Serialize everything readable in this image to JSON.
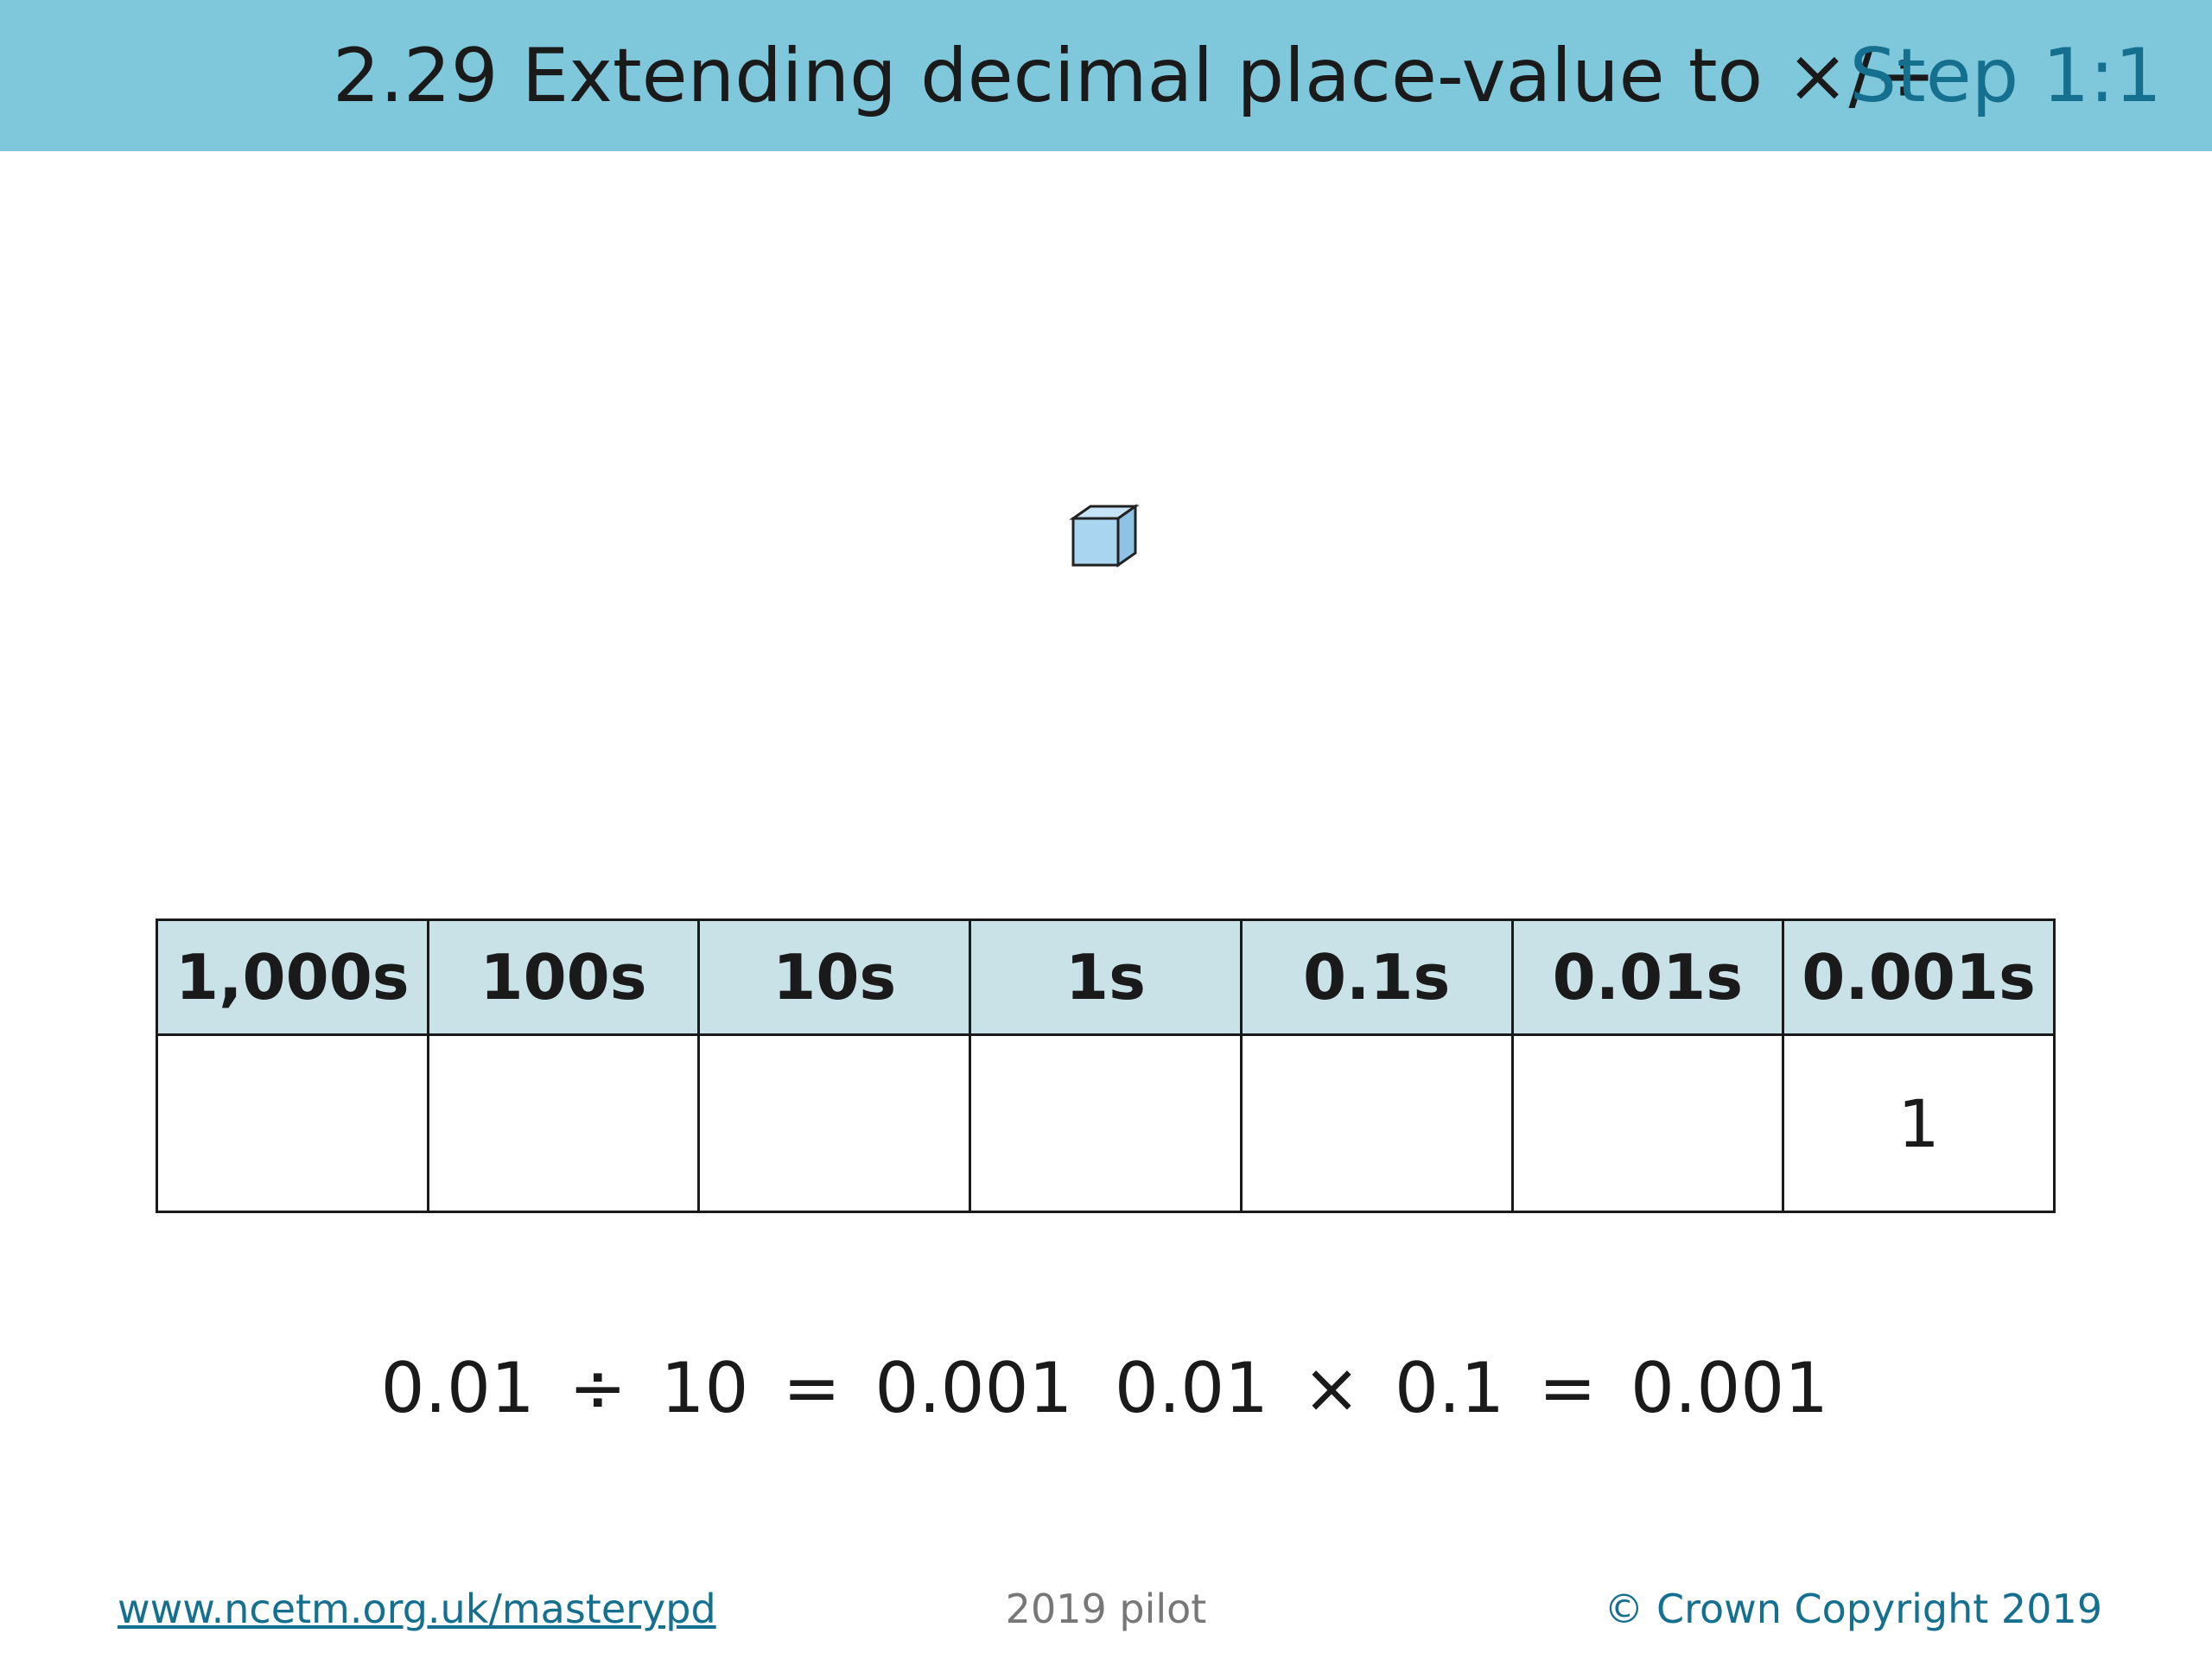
{
  "header": {
    "title": "2.29 Extending decimal place-value to ×/÷",
    "step": "Step 1:1"
  },
  "table": {
    "headers": [
      "1,000s",
      "100s",
      "10s",
      "1s",
      "0.1s",
      "0.01s",
      "0.001s"
    ],
    "rows": [
      [
        null,
        null,
        null,
        null,
        null,
        null,
        1
      ]
    ]
  },
  "equations": [
    "0.01 ÷ 10 = 0.001",
    "0.01 × 0.1 = 0.001"
  ],
  "footer": {
    "link": "www.ncetm.org.uk/masterypd",
    "center": "2019 pilot",
    "copyright": "© Crown Copyright 2019"
  }
}
